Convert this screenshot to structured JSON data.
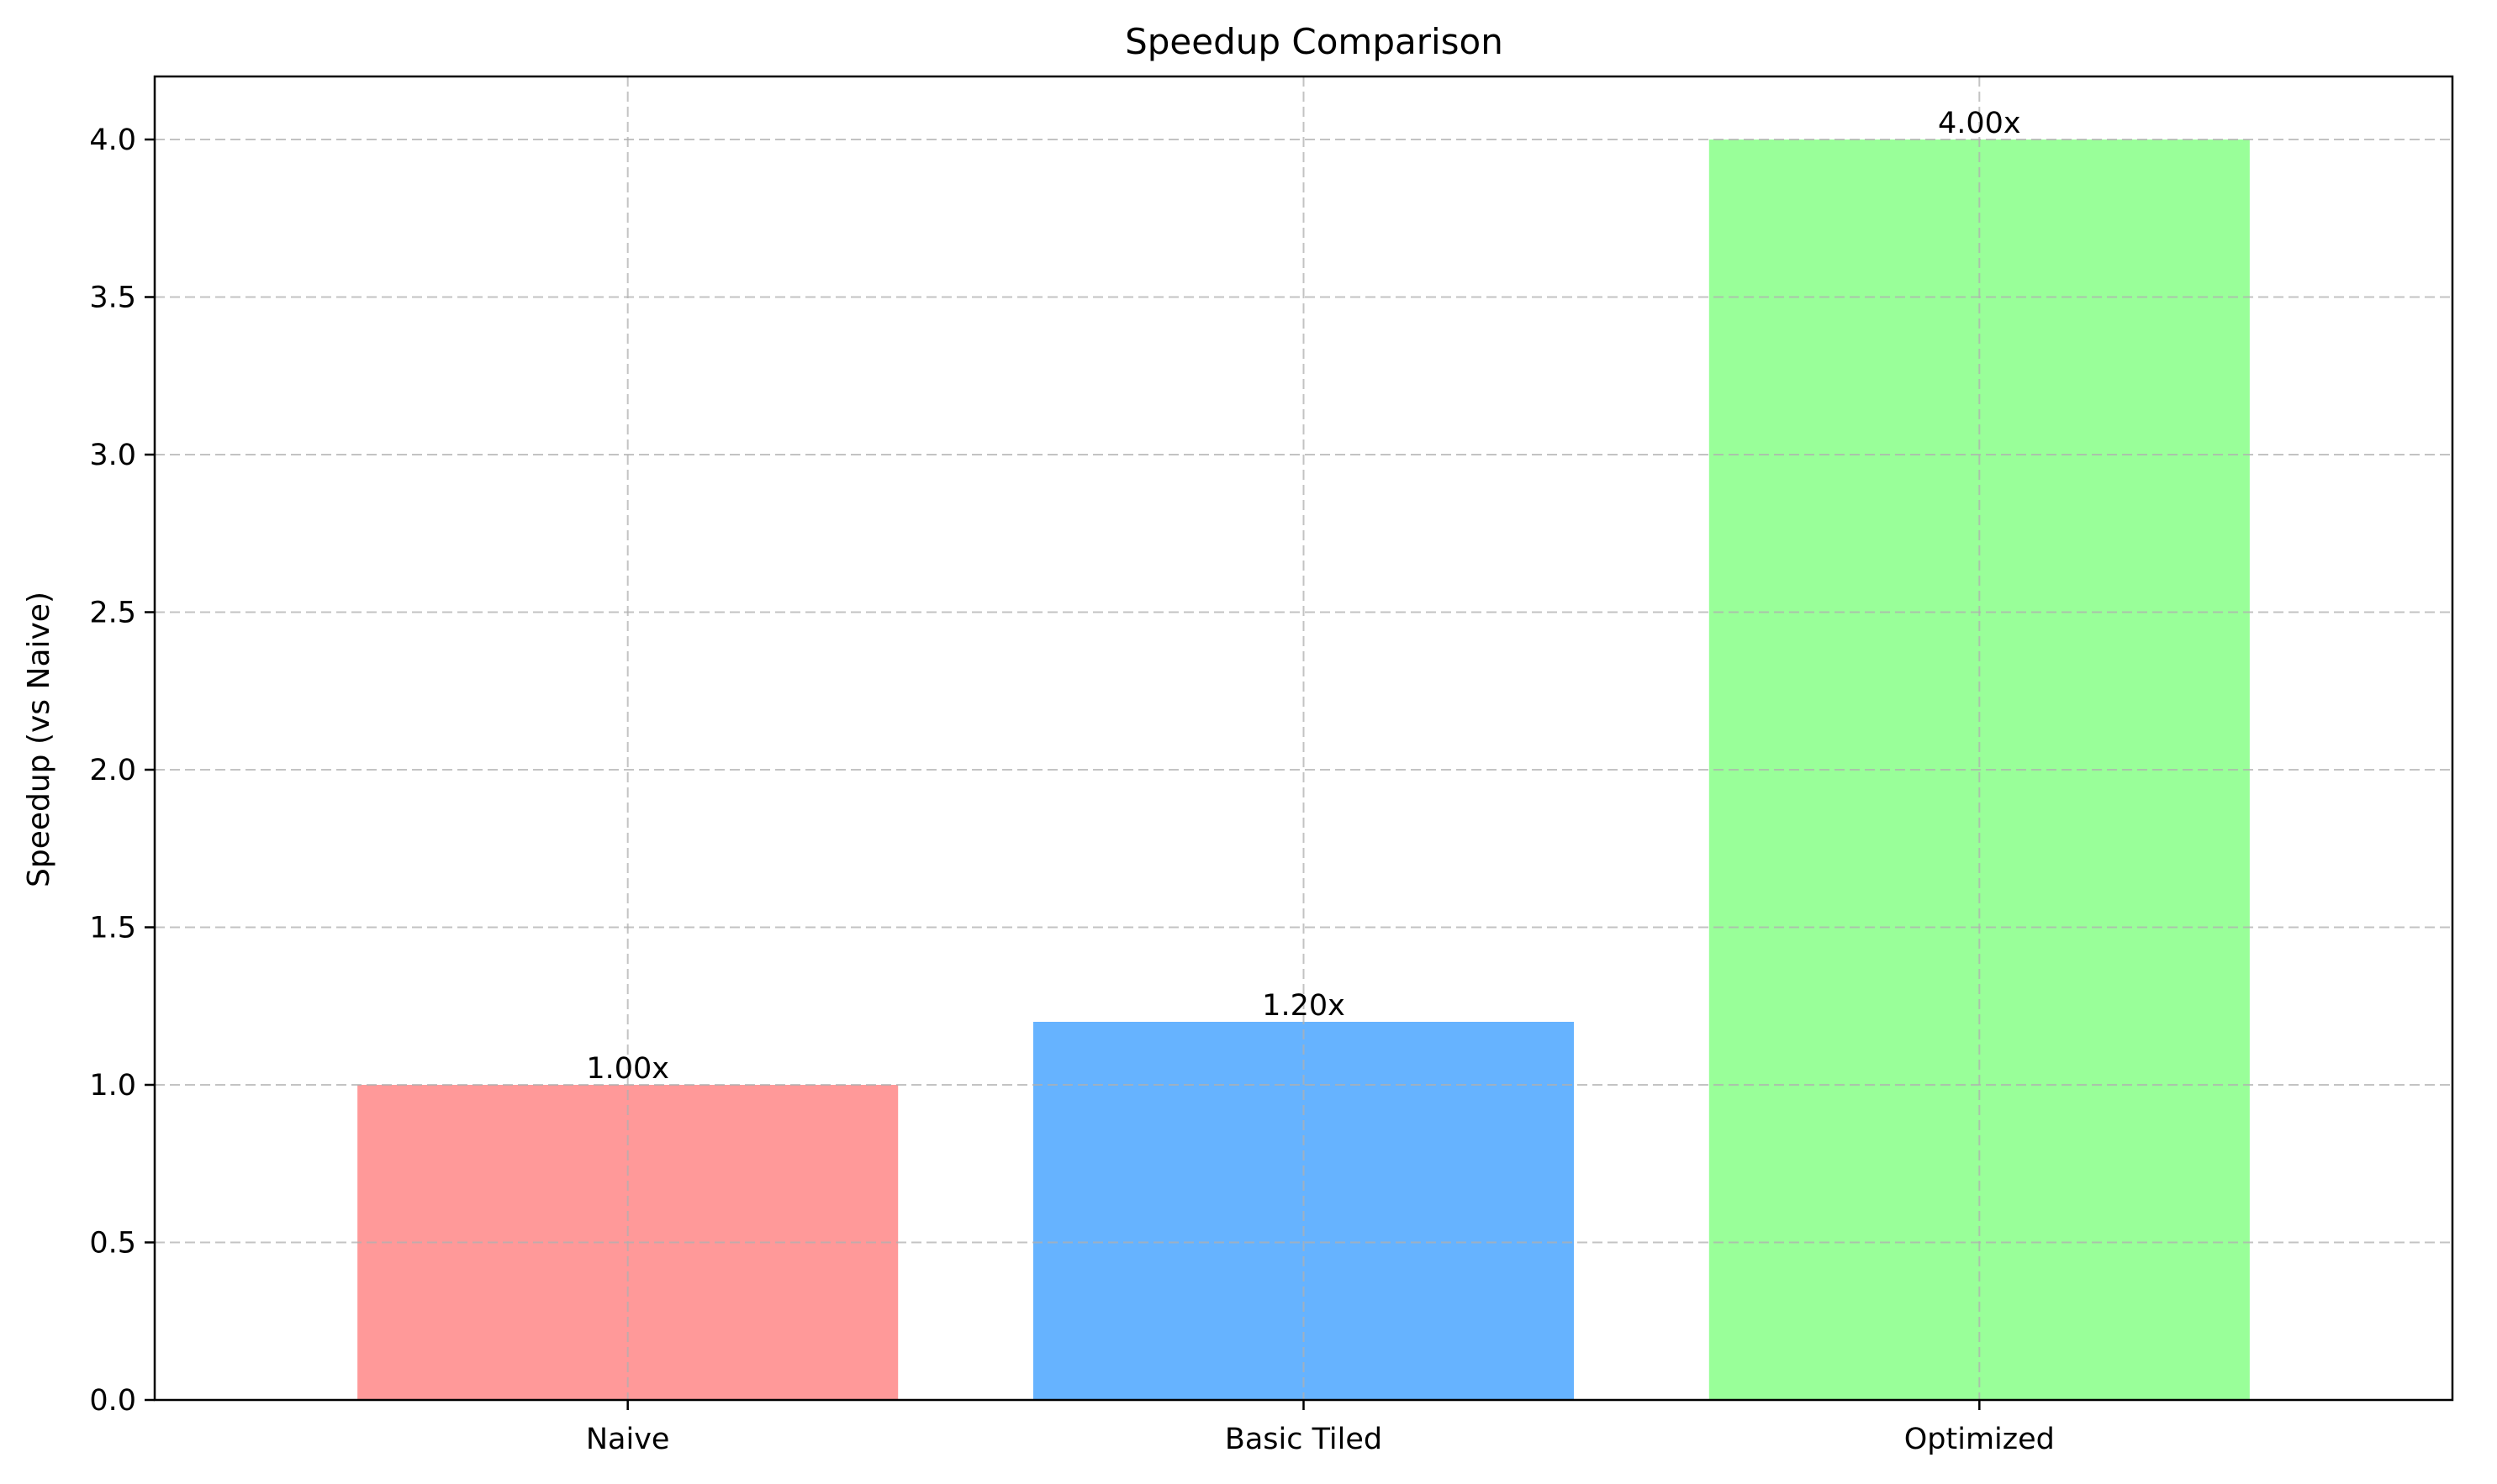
{
  "chart_data": {
    "type": "bar",
    "title": "Speedup Comparison",
    "xlabel": "",
    "ylabel": "Speedup (vs Naive)",
    "categories": [
      "Naive",
      "Basic Tiled",
      "Optimized"
    ],
    "values": [
      1.0,
      1.2,
      4.0
    ],
    "data_labels": [
      "1.00x",
      "1.20x",
      "4.00x"
    ],
    "colors": [
      "#ff9999",
      "#66b3ff",
      "#99ff99"
    ],
    "ylim": [
      0,
      4.2
    ],
    "yticks": [
      0.0,
      0.5,
      1.0,
      1.5,
      2.0,
      2.5,
      3.0,
      3.5,
      4.0
    ],
    "ytick_labels": [
      "0.0",
      "0.5",
      "1.0",
      "1.5",
      "2.0",
      "2.5",
      "3.0",
      "3.5",
      "4.0"
    ],
    "grid": true,
    "grid_style": "dashed"
  }
}
